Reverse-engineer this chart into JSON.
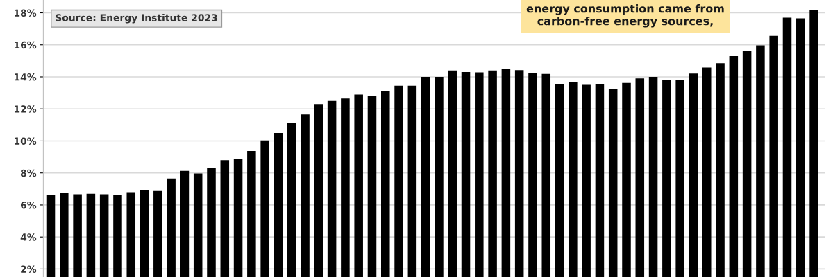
{
  "chart_data": {
    "type": "bar",
    "categories": [
      null,
      null,
      null,
      null,
      null,
      null,
      null,
      null,
      null,
      null,
      null,
      null,
      null,
      null,
      null,
      null,
      null,
      null,
      null,
      null,
      null,
      null,
      null,
      null,
      null,
      null,
      null,
      null,
      null,
      null,
      null,
      null,
      null,
      null,
      null,
      null,
      null,
      null,
      null,
      null,
      null,
      null,
      null,
      null,
      null,
      null,
      null,
      null,
      null,
      null,
      null,
      null,
      null,
      null,
      null,
      null,
      null,
      null
    ],
    "values": [
      6.6,
      6.75,
      6.67,
      6.7,
      6.67,
      6.65,
      6.8,
      6.95,
      6.87,
      7.65,
      8.13,
      7.97,
      8.3,
      8.8,
      8.9,
      9.37,
      10.03,
      10.5,
      11.13,
      11.65,
      12.3,
      12.5,
      12.65,
      12.9,
      12.8,
      13.1,
      13.45,
      13.45,
      14.0,
      14.0,
      14.4,
      14.3,
      14.28,
      14.4,
      14.48,
      14.42,
      14.25,
      14.18,
      13.55,
      13.68,
      13.5,
      13.52,
      13.23,
      13.62,
      13.9,
      14.0,
      13.82,
      13.82,
      14.2,
      14.58,
      14.85,
      15.3,
      15.6,
      15.97,
      16.56,
      17.7,
      17.65,
      18.15
    ],
    "color": "#000000",
    "ylim": [
      1.5,
      18.8
    ],
    "yticks": [
      {
        "value": 2,
        "label": "2%"
      },
      {
        "value": 4,
        "label": "4%"
      },
      {
        "value": 6,
        "label": "6%"
      },
      {
        "value": 8,
        "label": "8%"
      },
      {
        "value": 10,
        "label": "10%"
      },
      {
        "value": 12,
        "label": "12%"
      },
      {
        "value": 14,
        "label": "14%"
      },
      {
        "value": 16,
        "label": "16%"
      },
      {
        "value": 18,
        "label": "18%"
      }
    ],
    "grid": "y",
    "annotations": [
      "energy consumption came from\ncarbon-free energy sources,",
      "Source: Energy Institute 2023"
    ]
  }
}
